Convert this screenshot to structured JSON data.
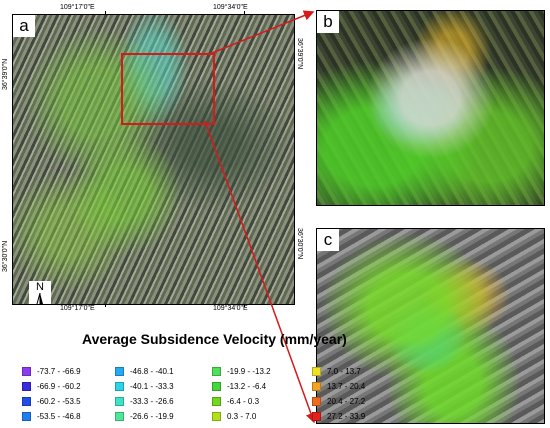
{
  "panel_a": {
    "letter": "a",
    "top_lon_left": "109°17'0\"E",
    "top_lon_right": "109°34'0\"E",
    "bottom_lon_left": "109°17'0\"E",
    "bottom_lon_right": "109°34'0\"E",
    "left_lat_top": "36°39'0\"N",
    "left_lat_bottom": "36°30'0\"N",
    "right_lat_top": "36°39'0\"N",
    "right_lat_bottom": "36°30'0\"N",
    "north_label": "N"
  },
  "panel_b": {
    "letter": "b"
  },
  "panel_c": {
    "letter": "c"
  },
  "legend": {
    "title": "Average Subsidence Velocity (mm/year)",
    "columns": [
      [
        {
          "label": "-73.7 - -66.9",
          "color": "#8c3cf0"
        },
        {
          "label": "-66.9 - -60.2",
          "color": "#3a2ae0"
        },
        {
          "label": "-60.2 - -53.5",
          "color": "#1f4ee8"
        },
        {
          "label": "-53.5 - -46.8",
          "color": "#1f7ef0"
        }
      ],
      [
        {
          "label": "-46.8 - -40.1",
          "color": "#25a9f0"
        },
        {
          "label": "-40.1 - -33.3",
          "color": "#2cd4e8"
        },
        {
          "label": "-33.3 - -26.6",
          "color": "#3fe3c4"
        },
        {
          "label": "-26.6 - -19.9",
          "color": "#4fe89a"
        }
      ],
      [
        {
          "label": "-19.9 - -13.2",
          "color": "#4fdf5a"
        },
        {
          "label": "-13.2 - -6.4",
          "color": "#44d63a"
        },
        {
          "label": "-6.4  -  0.3",
          "color": "#72d81f"
        },
        {
          "label": "0.3  -  7.0",
          "color": "#b3e01a"
        }
      ],
      [
        {
          "label": "7.0  -  13.7",
          "color": "#f1e024"
        },
        {
          "label": "13.7 - 20.4",
          "color": "#f3a321"
        },
        {
          "label": "20.4 - 27.2",
          "color": "#ef6b1d"
        },
        {
          "label": "27.2 - 33.9",
          "color": "#e3201b"
        }
      ]
    ]
  },
  "colors": {
    "inset_outline": "#d51a1a"
  }
}
